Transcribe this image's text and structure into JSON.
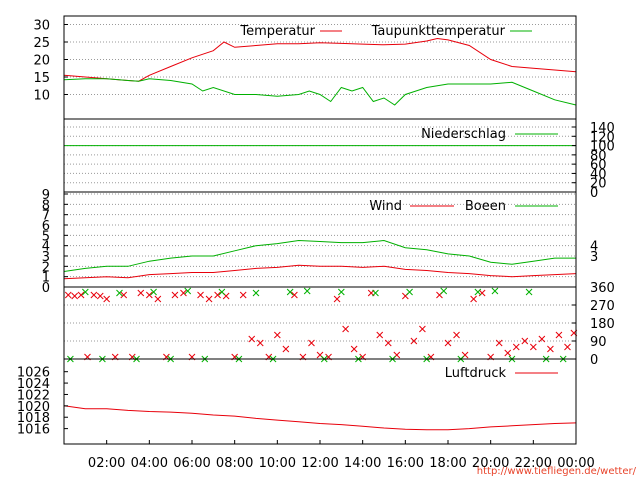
{
  "credit": "http://www.tiefliegen.de/wetter/",
  "colors": {
    "red": "#e8000b",
    "green": "#00b000",
    "grid": "#9a9a9a",
    "frame": "#000000"
  },
  "x_axis": {
    "ticks": [
      "02:00",
      "04:00",
      "06:00",
      "08:00",
      "10:00",
      "12:00",
      "14:00",
      "16:00",
      "18:00",
      "20:00",
      "22:00",
      "00:00"
    ],
    "hours_span": 24
  },
  "chart_data": [
    {
      "type": "line",
      "panel": "temperature",
      "ylim": [
        5,
        31
      ],
      "yticks": [
        10,
        15,
        20,
        25,
        30
      ],
      "grid": true,
      "legend_placement": "top",
      "series": [
        {
          "name": "Temperatur",
          "color": "#e8000b",
          "x": [
            0,
            1,
            2,
            3,
            3.5,
            4,
            5,
            6,
            7,
            7.5,
            8,
            9,
            10,
            11,
            12,
            13,
            14,
            15,
            16,
            17,
            17.5,
            18,
            19,
            20,
            21,
            22,
            23,
            24
          ],
          "y": [
            15.5,
            15,
            14.5,
            14,
            13.8,
            15.5,
            18,
            20.5,
            22.5,
            25,
            23.5,
            24,
            24.5,
            24.5,
            24.8,
            24.6,
            24.4,
            24.2,
            24.4,
            25.3,
            26,
            25.6,
            24,
            20,
            18,
            17.5,
            17,
            16.5
          ]
        },
        {
          "name": "Taupunkttemperatur",
          "color": "#00b000",
          "x": [
            0,
            1,
            2,
            3,
            3.5,
            4,
            5,
            6,
            6.5,
            7,
            8,
            9,
            10,
            11,
            11.5,
            12,
            12.5,
            13,
            13.5,
            14,
            14.5,
            15,
            15.5,
            16,
            16.5,
            17,
            18,
            19,
            20,
            21,
            22,
            23,
            24
          ],
          "y": [
            14.2,
            14.5,
            14.5,
            14,
            13.8,
            14.5,
            14,
            13,
            11,
            12,
            10,
            10,
            9.5,
            10,
            11,
            10,
            8,
            12,
            11,
            12,
            8,
            9,
            7,
            10,
            11,
            12,
            13,
            13,
            13,
            13.5,
            11,
            8.5,
            7
          ]
        }
      ]
    },
    {
      "type": "line",
      "panel": "precipitation",
      "ylim": [
        0,
        140
      ],
      "yticks": [
        0,
        20,
        40,
        60,
        80,
        100,
        120,
        140
      ],
      "grid": true,
      "legend_placement": "top-right",
      "series": [
        {
          "name": "Niederschlag",
          "color": "#00b000",
          "x": [
            0,
            24
          ],
          "y": [
            100,
            100
          ]
        }
      ]
    },
    {
      "type": "line",
      "panel": "wind",
      "ylim": [
        0,
        9
      ],
      "yticks": [
        0,
        1,
        2,
        3,
        4,
        5,
        6,
        7,
        8,
        9
      ],
      "right_ticks": [
        "3",
        "4"
      ],
      "grid": true,
      "legend_placement": "top-right",
      "series": [
        {
          "name": "Wind",
          "color": "#e8000b",
          "x": [
            0,
            1,
            2,
            3,
            4,
            5,
            6,
            7,
            8,
            9,
            10,
            11,
            12,
            13,
            14,
            15,
            16,
            17,
            18,
            19,
            20,
            21,
            22,
            23,
            24
          ],
          "y": [
            0.8,
            0.9,
            1.0,
            0.9,
            1.2,
            1.3,
            1.4,
            1.4,
            1.6,
            1.8,
            1.9,
            2.1,
            2.0,
            2.0,
            1.9,
            2.0,
            1.7,
            1.6,
            1.4,
            1.3,
            1.1,
            1.0,
            1.1,
            1.2,
            1.3
          ]
        },
        {
          "name": "Boeen",
          "color": "#00b000",
          "x": [
            0,
            1,
            2,
            3,
            4,
            5,
            6,
            7,
            8,
            9,
            10,
            11,
            12,
            13,
            14,
            15,
            16,
            17,
            18,
            19,
            20,
            21,
            22,
            23,
            24
          ],
          "y": [
            1.5,
            1.8,
            2.0,
            2.0,
            2.5,
            2.8,
            3.0,
            3.0,
            3.5,
            4.0,
            4.2,
            4.5,
            4.4,
            4.3,
            4.3,
            4.5,
            3.8,
            3.6,
            3.2,
            3.0,
            2.4,
            2.2,
            2.5,
            2.8,
            2.8
          ]
        }
      ]
    },
    {
      "type": "scatter",
      "panel": "wind-direction",
      "ylim": [
        0,
        360
      ],
      "yticks": [
        0,
        90,
        180,
        270,
        360
      ],
      "grid": true,
      "series": [
        {
          "name": "",
          "color": "#e8000b",
          "x": [
            0.2,
            0.5,
            0.8,
            1.1,
            1.4,
            1.7,
            2.0,
            2.4,
            2.8,
            3.2,
            3.6,
            4.0,
            4.4,
            4.8,
            5.2,
            5.6,
            6.0,
            6.4,
            6.8,
            7.2,
            7.6,
            8.0,
            8.4,
            8.8,
            9.2,
            9.6,
            10.0,
            10.4,
            10.8,
            11.2,
            11.6,
            12.0,
            12.4,
            12.8,
            13.2,
            13.6,
            14.0,
            14.4,
            14.8,
            15.2,
            15.6,
            16.0,
            16.4,
            16.8,
            17.2,
            17.6,
            18.0,
            18.4,
            18.8,
            19.2,
            19.6,
            20.0,
            20.4,
            20.8,
            21.2,
            21.6,
            22.0,
            22.4,
            22.8,
            23.2,
            23.6,
            23.9
          ],
          "y": [
            320,
            315,
            320,
            10,
            320,
            315,
            300,
            10,
            320,
            10,
            330,
            320,
            300,
            10,
            320,
            330,
            10,
            320,
            300,
            320,
            315,
            10,
            320,
            100,
            80,
            10,
            120,
            50,
            320,
            10,
            80,
            20,
            10,
            300,
            150,
            50,
            10,
            330,
            120,
            80,
            20,
            315,
            90,
            150,
            10,
            320,
            80,
            120,
            20,
            300,
            330,
            10,
            80,
            30,
            60,
            90,
            60,
            100,
            50,
            120,
            60,
            130
          ]
        },
        {
          "name": "",
          "color": "#00b000",
          "x": [
            0.3,
            1.0,
            1.8,
            2.6,
            3.4,
            4.2,
            5.0,
            5.8,
            6.6,
            7.4,
            8.2,
            9.0,
            9.8,
            10.6,
            11.4,
            12.2,
            13.0,
            13.8,
            14.6,
            15.4,
            16.2,
            17.0,
            17.8,
            18.6,
            19.4,
            20.2,
            21.0,
            21.8,
            22.6,
            23.4
          ],
          "y": [
            0,
            335,
            0,
            330,
            0,
            335,
            0,
            340,
            0,
            335,
            0,
            330,
            0,
            335,
            340,
            0,
            335,
            0,
            330,
            0,
            335,
            0,
            340,
            0,
            335,
            340,
            0,
            335,
            0,
            0
          ]
        }
      ]
    },
    {
      "type": "line",
      "panel": "pressure",
      "ylim": [
        1014,
        1027
      ],
      "yticks": [
        1016,
        1018,
        1020,
        1022,
        1024,
        1026
      ],
      "grid": false,
      "legend_placement": "top-right",
      "series": [
        {
          "name": "Luftdruck",
          "color": "#e8000b",
          "x": [
            0,
            1,
            2,
            3,
            4,
            5,
            6,
            7,
            8,
            9,
            10,
            11,
            12,
            13,
            14,
            15,
            16,
            17,
            18,
            19,
            20,
            21,
            22,
            23,
            24
          ],
          "y": [
            1020.0,
            1019.5,
            1019.5,
            1019.2,
            1019.0,
            1018.9,
            1018.7,
            1018.4,
            1018.2,
            1017.8,
            1017.5,
            1017.2,
            1016.9,
            1016.7,
            1016.4,
            1016.1,
            1015.9,
            1015.8,
            1015.8,
            1016.0,
            1016.3,
            1016.5,
            1016.7,
            1016.9,
            1017.0
          ]
        }
      ]
    }
  ]
}
